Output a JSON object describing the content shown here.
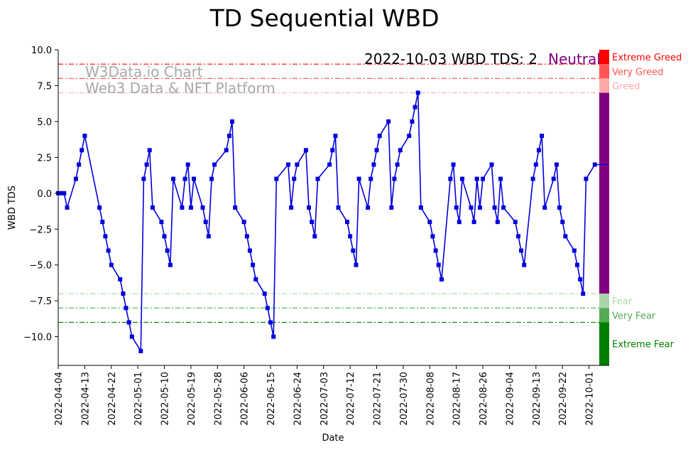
{
  "chart_data": {
    "type": "line",
    "title": "TD Sequential WBD",
    "xlabel": "Date",
    "ylabel": "WBD TDS",
    "ylim": [
      -12,
      10
    ],
    "xlim": [
      "2022-04-04",
      "2022-10-04"
    ],
    "grid": false,
    "watermark": [
      "W3Data.io Chart",
      "Web3 Data & NFT Platform"
    ],
    "annotation": {
      "date_label": "2022-10-03 WBD TDS: 2",
      "sentiment": "Neutral",
      "sentiment_color": "#800080"
    },
    "x_ticks": [
      "2022-04-04",
      "2022-04-13",
      "2022-04-22",
      "2022-05-01",
      "2022-05-10",
      "2022-05-19",
      "2022-05-28",
      "2022-06-06",
      "2022-06-15",
      "2022-06-24",
      "2022-07-03",
      "2022-07-12",
      "2022-07-21",
      "2022-07-30",
      "2022-08-08",
      "2022-08-17",
      "2022-08-26",
      "2022-09-04",
      "2022-09-13",
      "2022-09-22",
      "2022-10-01"
    ],
    "y_ticks": [
      10.0,
      7.5,
      5.0,
      2.5,
      0.0,
      -2.5,
      -5.0,
      -7.5,
      -10.0
    ],
    "y_tick_labels": [
      "10.0",
      "7.5",
      "5.0",
      "2.5",
      "0.0",
      "−2.5",
      "−5.0",
      "−7.5",
      "−10.0"
    ],
    "reference_lines": [
      {
        "y": 9,
        "color": "#ff0000"
      },
      {
        "y": 8,
        "color": "#ff5555"
      },
      {
        "y": 7,
        "color": "#ffaaaa"
      },
      {
        "y": -7,
        "color": "#aaddaa"
      },
      {
        "y": -8,
        "color": "#55bb55"
      },
      {
        "y": -9,
        "color": "#008000"
      }
    ],
    "zones": [
      {
        "label": "Extreme Greed",
        "from": 9,
        "to": 10,
        "color": "#ff0000"
      },
      {
        "label": "Very Greed",
        "from": 8,
        "to": 9,
        "color": "#ff5555"
      },
      {
        "label": "Greed",
        "from": 7,
        "to": 8,
        "color": "#ffaaaa"
      },
      {
        "label": "",
        "from": -7,
        "to": 7,
        "color": "#800080"
      },
      {
        "label": "Fear",
        "from": -8,
        "to": -7,
        "color": "#aad4aa"
      },
      {
        "label": "Very Fear",
        "from": -9,
        "to": -8,
        "color": "#55aa55"
      },
      {
        "label": "Extreme Fear",
        "from": -12,
        "to": -9,
        "color": "#008000"
      }
    ],
    "series": [
      {
        "color": "#0000dd",
        "points": [
          [
            "2022-04-04",
            0
          ],
          [
            "2022-04-05",
            0
          ],
          [
            "2022-04-06",
            0
          ],
          [
            "2022-04-07",
            -1
          ],
          [
            "2022-04-10",
            1
          ],
          [
            "2022-04-11",
            2
          ],
          [
            "2022-04-12",
            3
          ],
          [
            "2022-04-13",
            4
          ],
          [
            "2022-04-18",
            -1
          ],
          [
            "2022-04-19",
            -2
          ],
          [
            "2022-04-20",
            -3
          ],
          [
            "2022-04-21",
            -4
          ],
          [
            "2022-04-22",
            -5
          ],
          [
            "2022-04-25",
            -6
          ],
          [
            "2022-04-26",
            -7
          ],
          [
            "2022-04-27",
            -8
          ],
          [
            "2022-04-28",
            -9
          ],
          [
            "2022-04-29",
            -10
          ],
          [
            "2022-05-02",
            -11
          ],
          [
            "2022-05-03",
            1
          ],
          [
            "2022-05-04",
            2
          ],
          [
            "2022-05-05",
            3
          ],
          [
            "2022-05-06",
            -1
          ],
          [
            "2022-05-09",
            -2
          ],
          [
            "2022-05-10",
            -3
          ],
          [
            "2022-05-11",
            -4
          ],
          [
            "2022-05-12",
            -5
          ],
          [
            "2022-05-13",
            1
          ],
          [
            "2022-05-16",
            -1
          ],
          [
            "2022-05-17",
            1
          ],
          [
            "2022-05-18",
            2
          ],
          [
            "2022-05-19",
            -1
          ],
          [
            "2022-05-20",
            1
          ],
          [
            "2022-05-23",
            -1
          ],
          [
            "2022-05-24",
            -2
          ],
          [
            "2022-05-25",
            -3
          ],
          [
            "2022-05-26",
            1
          ],
          [
            "2022-05-27",
            2
          ],
          [
            "2022-05-31",
            3
          ],
          [
            "2022-06-01",
            4
          ],
          [
            "2022-06-02",
            5
          ],
          [
            "2022-06-03",
            -1
          ],
          [
            "2022-06-06",
            -2
          ],
          [
            "2022-06-07",
            -3
          ],
          [
            "2022-06-08",
            -4
          ],
          [
            "2022-06-09",
            -5
          ],
          [
            "2022-06-10",
            -6
          ],
          [
            "2022-06-13",
            -7
          ],
          [
            "2022-06-14",
            -8
          ],
          [
            "2022-06-15",
            -9
          ],
          [
            "2022-06-16",
            -10
          ],
          [
            "2022-06-17",
            1
          ],
          [
            "2022-06-21",
            2
          ],
          [
            "2022-06-22",
            -1
          ],
          [
            "2022-06-23",
            1
          ],
          [
            "2022-06-24",
            2
          ],
          [
            "2022-06-27",
            3
          ],
          [
            "2022-06-28",
            -1
          ],
          [
            "2022-06-29",
            -2
          ],
          [
            "2022-06-30",
            -3
          ],
          [
            "2022-07-01",
            1
          ],
          [
            "2022-07-05",
            2
          ],
          [
            "2022-07-06",
            3
          ],
          [
            "2022-07-07",
            4
          ],
          [
            "2022-07-08",
            -1
          ],
          [
            "2022-07-11",
            -2
          ],
          [
            "2022-07-12",
            -3
          ],
          [
            "2022-07-13",
            -4
          ],
          [
            "2022-07-14",
            -5
          ],
          [
            "2022-07-15",
            1
          ],
          [
            "2022-07-18",
            -1
          ],
          [
            "2022-07-19",
            1
          ],
          [
            "2022-07-20",
            2
          ],
          [
            "2022-07-21",
            3
          ],
          [
            "2022-07-22",
            4
          ],
          [
            "2022-07-25",
            5
          ],
          [
            "2022-07-26",
            -1
          ],
          [
            "2022-07-27",
            1
          ],
          [
            "2022-07-28",
            2
          ],
          [
            "2022-07-29",
            3
          ],
          [
            "2022-08-01",
            4
          ],
          [
            "2022-08-02",
            5
          ],
          [
            "2022-08-03",
            6
          ],
          [
            "2022-08-04",
            7
          ],
          [
            "2022-08-05",
            -1
          ],
          [
            "2022-08-08",
            -2
          ],
          [
            "2022-08-09",
            -3
          ],
          [
            "2022-08-10",
            -4
          ],
          [
            "2022-08-11",
            -5
          ],
          [
            "2022-08-12",
            -6
          ],
          [
            "2022-08-15",
            1
          ],
          [
            "2022-08-16",
            2
          ],
          [
            "2022-08-17",
            -1
          ],
          [
            "2022-08-18",
            -2
          ],
          [
            "2022-08-19",
            1
          ],
          [
            "2022-08-22",
            -1
          ],
          [
            "2022-08-23",
            -2
          ],
          [
            "2022-08-24",
            1
          ],
          [
            "2022-08-25",
            -1
          ],
          [
            "2022-08-26",
            1
          ],
          [
            "2022-08-29",
            2
          ],
          [
            "2022-08-30",
            -1
          ],
          [
            "2022-08-31",
            -2
          ],
          [
            "2022-09-01",
            1
          ],
          [
            "2022-09-02",
            -1
          ],
          [
            "2022-09-06",
            -2
          ],
          [
            "2022-09-07",
            -3
          ],
          [
            "2022-09-08",
            -4
          ],
          [
            "2022-09-09",
            -5
          ],
          [
            "2022-09-12",
            1
          ],
          [
            "2022-09-13",
            2
          ],
          [
            "2022-09-14",
            3
          ],
          [
            "2022-09-15",
            4
          ],
          [
            "2022-09-16",
            -1
          ],
          [
            "2022-09-19",
            1
          ],
          [
            "2022-09-20",
            2
          ],
          [
            "2022-09-21",
            -1
          ],
          [
            "2022-09-22",
            -2
          ],
          [
            "2022-09-23",
            -3
          ],
          [
            "2022-09-26",
            -4
          ],
          [
            "2022-09-27",
            -5
          ],
          [
            "2022-09-28",
            -6
          ],
          [
            "2022-09-29",
            -7
          ],
          [
            "2022-09-30",
            1
          ],
          [
            "2022-10-03",
            2
          ]
        ]
      }
    ]
  }
}
